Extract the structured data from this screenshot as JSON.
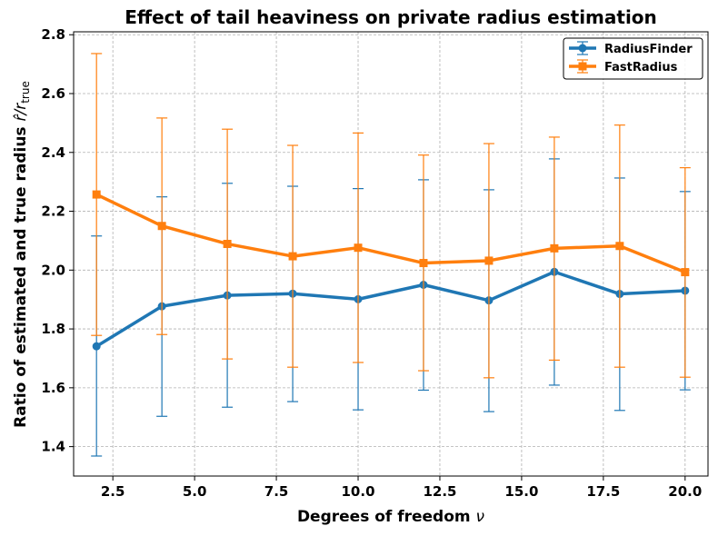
{
  "chart_data": {
    "type": "line",
    "title": "Effect of tail heaviness on private radius estimation",
    "xlabel_text": "Degrees of freedom ",
    "xlabel_symbol": "ν",
    "ylabel_text": "Ratio of estimated and true radius ",
    "ylabel_symbol": "r̂/r",
    "ylabel_sub": "true",
    "xlim": [
      1.3,
      20.7
    ],
    "ylim": [
      1.3,
      2.81
    ],
    "xticks": [
      2.5,
      5.0,
      7.5,
      10.0,
      12.5,
      15.0,
      17.5,
      20.0
    ],
    "xtick_labels": [
      "2.5",
      "5.0",
      "7.5",
      "10.0",
      "12.5",
      "15.0",
      "17.5",
      "20.0"
    ],
    "yticks": [
      1.4,
      1.6,
      1.8,
      2.0,
      2.2,
      2.4,
      2.6,
      2.8
    ],
    "ytick_labels": [
      "1.4",
      "1.6",
      "1.8",
      "2.0",
      "2.2",
      "2.4",
      "2.6",
      "2.8"
    ],
    "grid": true,
    "legend_position": "top-right",
    "x": [
      2,
      4,
      6,
      8,
      10,
      12,
      14,
      16,
      18,
      20
    ],
    "series": [
      {
        "name": "RadiusFinder",
        "color": "#1f77b4",
        "marker": "circle",
        "values": [
          1.741,
          1.877,
          1.914,
          1.92,
          1.901,
          1.95,
          1.897,
          1.994,
          1.919,
          1.93
        ],
        "err_low": [
          1.368,
          1.503,
          1.534,
          1.553,
          1.525,
          1.592,
          1.519,
          1.609,
          1.523,
          1.593
        ],
        "err_high": [
          2.116,
          2.249,
          2.295,
          2.285,
          2.277,
          2.307,
          2.273,
          2.378,
          2.313,
          2.267
        ]
      },
      {
        "name": "FastRadius",
        "color": "#ff7f0e",
        "marker": "square",
        "values": [
          2.257,
          2.15,
          2.089,
          2.047,
          2.076,
          2.024,
          2.032,
          2.074,
          2.082,
          1.993
        ],
        "err_low": [
          1.778,
          1.781,
          1.698,
          1.67,
          1.686,
          1.658,
          1.634,
          1.694,
          1.67,
          1.636
        ],
        "err_high": [
          2.736,
          2.517,
          2.479,
          2.424,
          2.466,
          2.391,
          2.43,
          2.452,
          2.493,
          2.348
        ]
      }
    ]
  }
}
